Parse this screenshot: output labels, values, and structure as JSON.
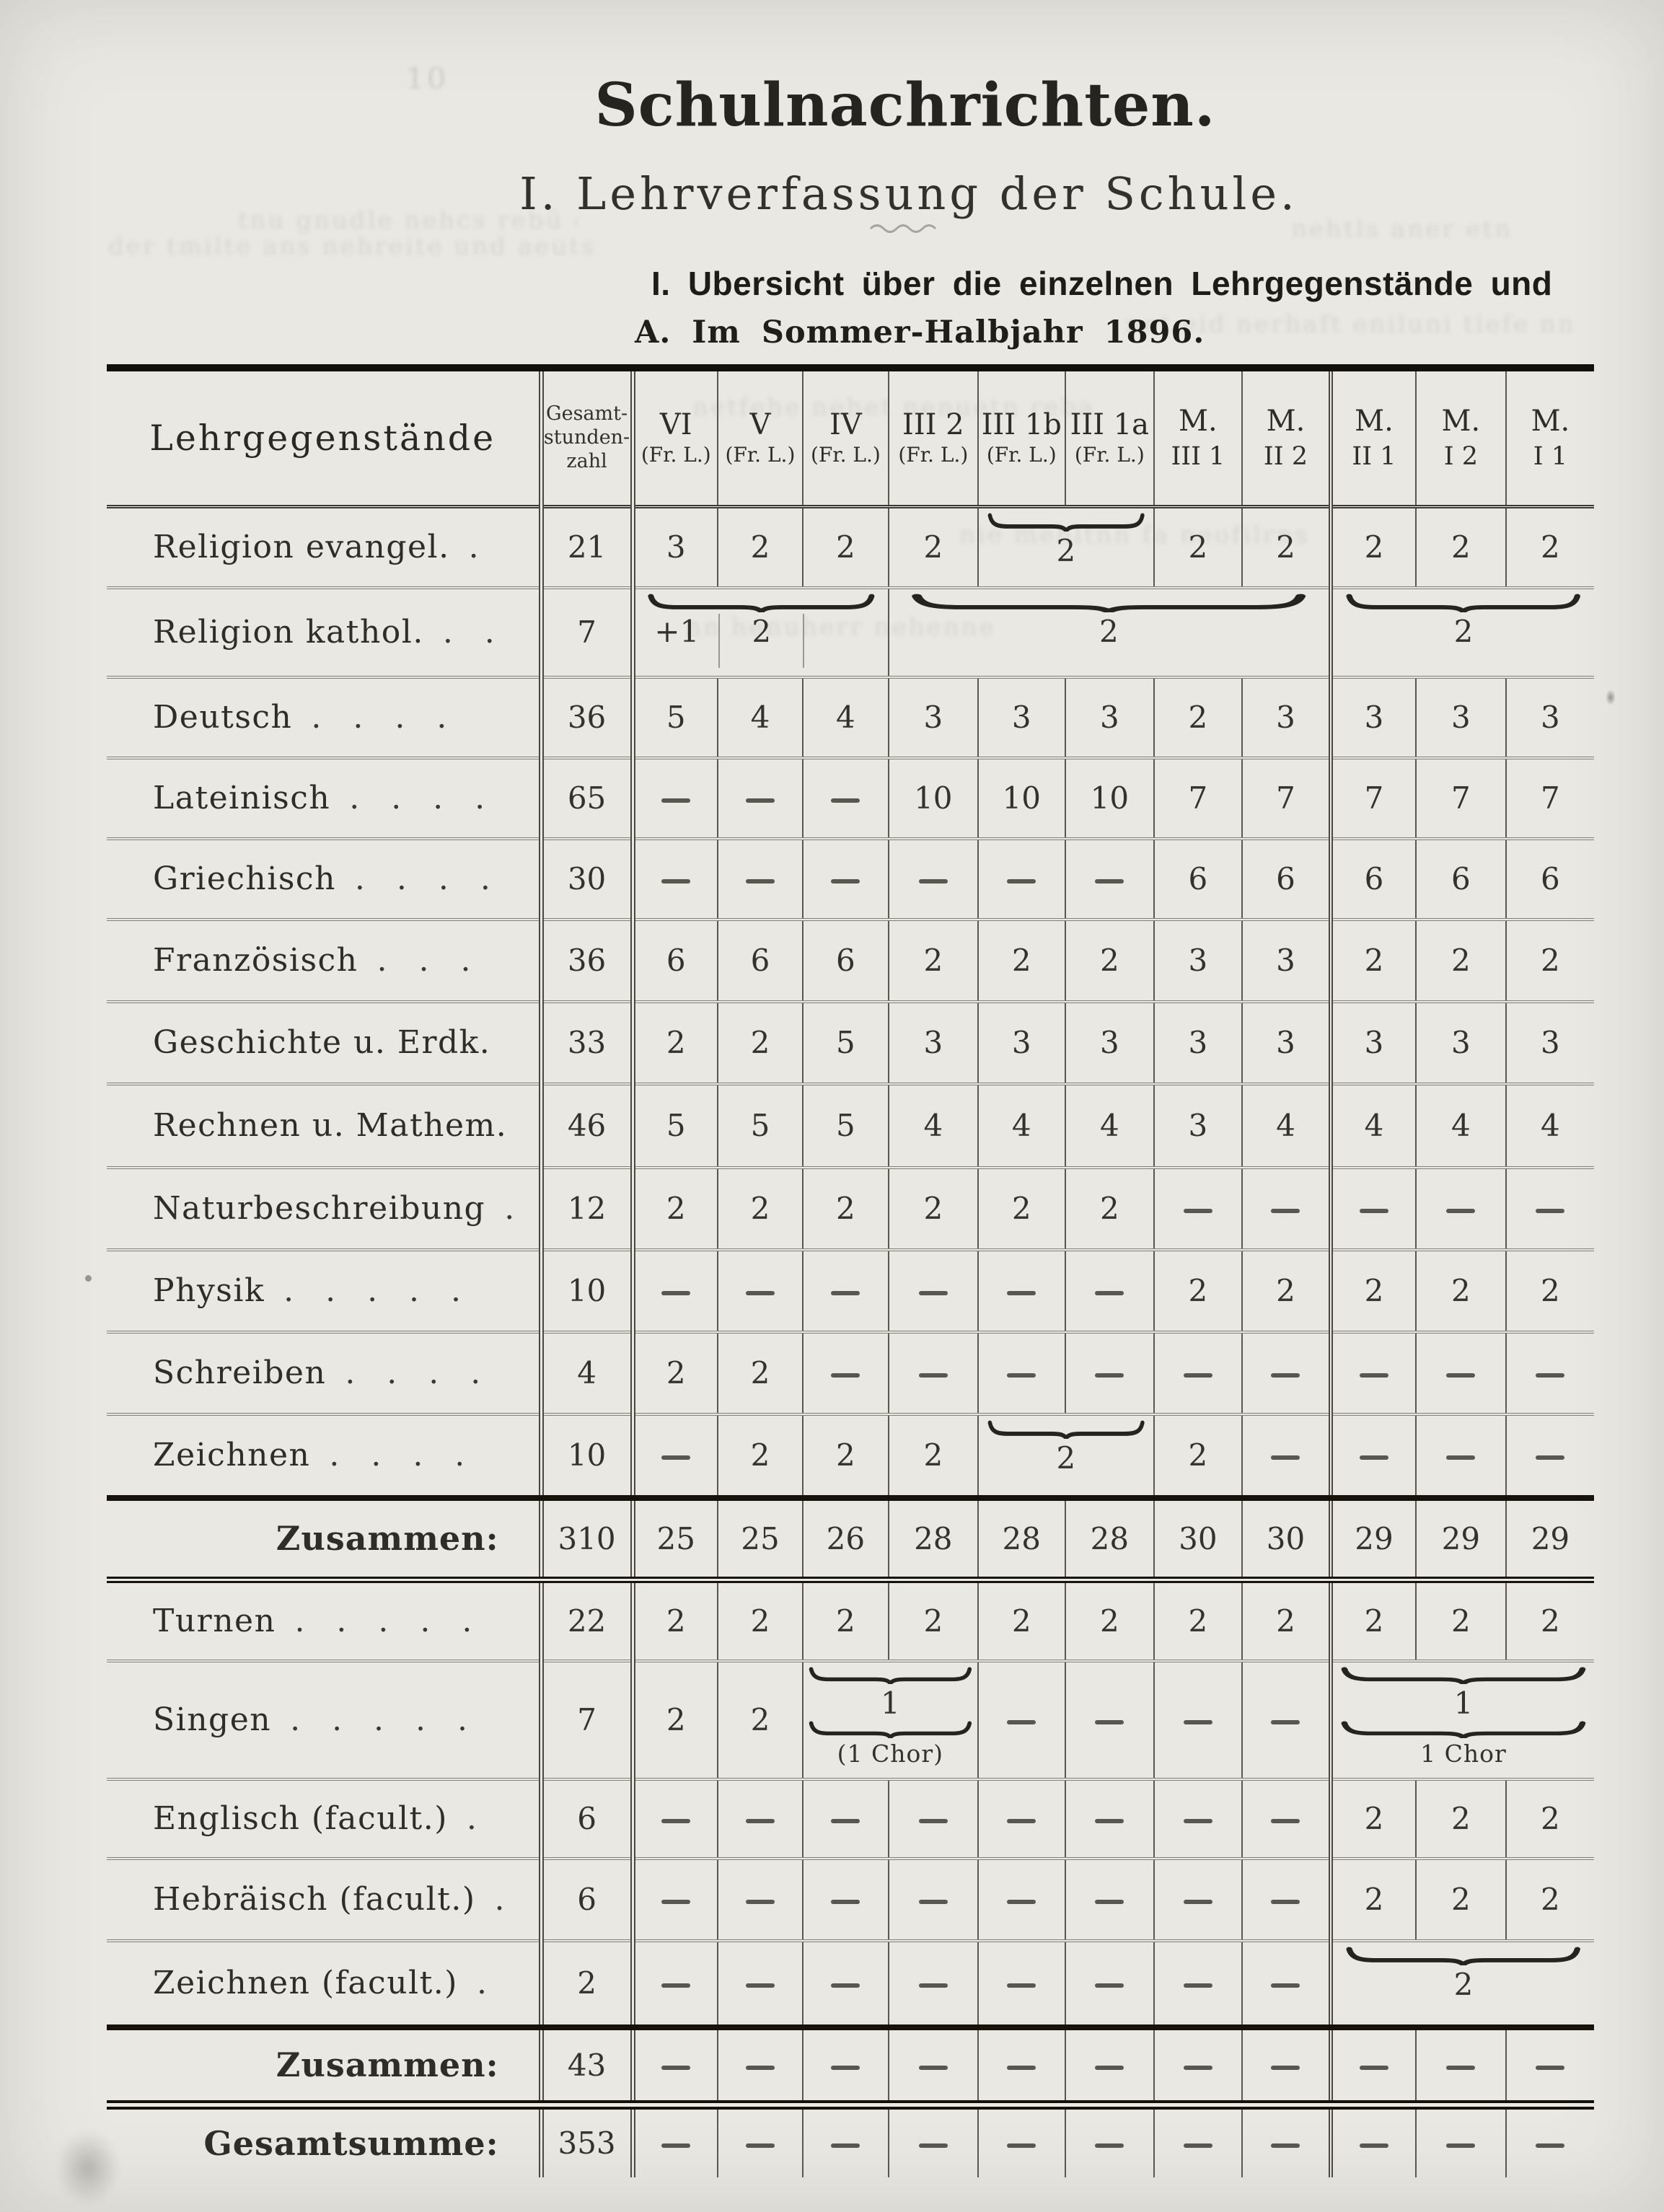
{
  "page": {
    "title": "Schulnachrichten.",
    "subtitle": "I. Lehrverfassung der Schule.",
    "heading_line1": "I. Ubersicht über die einzelnen Lehrgegenstände und",
    "heading_line2": "A. Im Sommer-Halbjahr 1896."
  },
  "table": {
    "subject_header": "Lehrgegenstände",
    "total_header_lines": [
      "Gesamt-",
      "stunden-",
      "zahl"
    ],
    "class_headers": [
      {
        "top": "VI",
        "bottom": "(Fr. L.)"
      },
      {
        "top": "V",
        "bottom": "(Fr. L.)"
      },
      {
        "top": "IV",
        "bottom": "(Fr. L.)"
      },
      {
        "top": "III 2",
        "bottom": "(Fr. L.)"
      },
      {
        "top": "III 1b",
        "bottom": "(Fr. L.)"
      },
      {
        "top": "III 1a",
        "bottom": "(Fr. L.)"
      },
      {
        "top": "M.",
        "bottom": "III 1"
      },
      {
        "top": "M.",
        "bottom": "II 2"
      },
      {
        "top": "M.",
        "bottom": "II 1"
      },
      {
        "top": "M.",
        "bottom": "I 2"
      },
      {
        "top": "M.",
        "bottom": "I 1"
      }
    ],
    "rows": [
      {
        "label": "Religion evangel.",
        "dots": ".",
        "total": "21",
        "cells": [
          "3",
          "2",
          "2",
          "2",
          {
            "span": 2,
            "brace": true,
            "value": "2"
          },
          "2",
          "2",
          "2",
          "2",
          "2"
        ]
      },
      {
        "label": "Religion kathol.",
        "dots": ". .",
        "total": "7",
        "cells": [
          {
            "span": 3,
            "brace": true,
            "parts": [
              "+1",
              "2",
              ""
            ]
          },
          {
            "span": 5,
            "brace": true,
            "value": "2"
          },
          {
            "span": 3,
            "brace": true,
            "value": "2"
          }
        ]
      },
      {
        "label": "Deutsch",
        "dots": ". . . .",
        "total": "36",
        "cells": [
          "5",
          "4",
          "4",
          "3",
          "3",
          "3",
          "2",
          "3",
          "3",
          "3",
          "3"
        ]
      },
      {
        "label": "Lateinisch",
        "dots": ". . . .",
        "total": "65",
        "cells": [
          "-",
          "-",
          "-",
          "10",
          "10",
          "10",
          "7",
          "7",
          "7",
          "7",
          "7"
        ]
      },
      {
        "label": "Griechisch",
        "dots": ". . . .",
        "total": "30",
        "cells": [
          "-",
          "-",
          "-",
          "-",
          "-",
          "-",
          "6",
          "6",
          "6",
          "6",
          "6"
        ]
      },
      {
        "label": "Französisch",
        "dots": ". . .",
        "total": "36",
        "cells": [
          "6",
          "6",
          "6",
          "2",
          "2",
          "2",
          "3",
          "3",
          "2",
          "2",
          "2"
        ]
      },
      {
        "label": "Geschichte u. Erdk.",
        "dots": "",
        "total": "33",
        "cells": [
          "2",
          "2",
          "5",
          "3",
          "3",
          "3",
          "3",
          "3",
          "3",
          "3",
          "3"
        ]
      },
      {
        "label": "Rechnen u. Mathem.",
        "dots": "",
        "total": "46",
        "cells": [
          "5",
          "5",
          "5",
          "4",
          "4",
          "4",
          "3",
          "4",
          "4",
          "4",
          "4"
        ]
      },
      {
        "label": "Naturbeschreibung",
        "dots": ".",
        "total": "12",
        "cells": [
          "2",
          "2",
          "2",
          "2",
          "2",
          "2",
          "-",
          "-",
          "-",
          "-",
          "-"
        ]
      },
      {
        "label": "Physik",
        "dots": ". . . . .",
        "total": "10",
        "cells": [
          "-",
          "-",
          "-",
          "-",
          "-",
          "-",
          "2",
          "2",
          "2",
          "2",
          "2"
        ]
      },
      {
        "label": "Schreiben",
        "dots": ". . . .",
        "total": "4",
        "cells": [
          "2",
          "2",
          "-",
          "-",
          "-",
          "-",
          "-",
          "-",
          "-",
          "-",
          "-"
        ]
      },
      {
        "label": "Zeichnen",
        "dots": ". . . .",
        "total": "10",
        "cells": [
          "-",
          "2",
          "2",
          "2",
          {
            "span": 2,
            "brace": true,
            "value": "2"
          },
          "2",
          "-",
          "-",
          "-",
          "-"
        ]
      },
      {
        "label": "Zusammen:",
        "dots": "",
        "bold": true,
        "total": "310",
        "cells": [
          "25",
          "25",
          "26",
          "28",
          "28",
          "28",
          "30",
          "30",
          "29",
          "29",
          "29"
        ]
      },
      {
        "label": "Turnen",
        "dots": ". . . . .",
        "total": "22",
        "cells": [
          "2",
          "2",
          "2",
          "2",
          "2",
          "2",
          "2",
          "2",
          "2",
          "2",
          "2"
        ]
      },
      {
        "label": "Singen",
        "dots": ". . . . .",
        "total": "7",
        "cells": [
          "2",
          "2",
          {
            "span": 2,
            "sandwich": true,
            "value": "1",
            "caption": "(1 Chor)"
          },
          "-",
          "-",
          "-",
          "-",
          {
            "span": 3,
            "sandwich": true,
            "value": "1",
            "caption": "1 Chor"
          }
        ]
      },
      {
        "label": "Englisch (facult.)",
        "dots": ".",
        "total": "6",
        "cells": [
          "-",
          "-",
          "-",
          "-",
          "-",
          "-",
          "-",
          "-",
          "2",
          "2",
          "2"
        ]
      },
      {
        "label": "Hebräisch (facult.)",
        "dots": ".",
        "total": "6",
        "cells": [
          "-",
          "-",
          "-",
          "-",
          "-",
          "-",
          "-",
          "-",
          "2",
          "2",
          "2"
        ]
      },
      {
        "label": "Zeichnen (facult.)",
        "dots": ".",
        "total": "2",
        "cells": [
          "-",
          "-",
          "-",
          "-",
          "-",
          "-",
          "-",
          "-",
          {
            "span": 3,
            "brace": true,
            "value": "2"
          }
        ]
      },
      {
        "label": "Zusammen:",
        "dots": "",
        "bold": true,
        "total": "43",
        "cells": [
          "-",
          "-",
          "-",
          "-",
          "-",
          "-",
          "-",
          "-",
          "-",
          "-",
          "-"
        ]
      },
      {
        "label": "Gesamtsumme:",
        "dots": "",
        "bold": true,
        "total": "353",
        "cells": [
          "-",
          "-",
          "-",
          "-",
          "-",
          "-",
          "-",
          "-",
          "-",
          "-",
          "-"
        ]
      }
    ]
  },
  "ghost": {
    "lines": [
      "10",
      "tnu gnudle nehcs rebü etla",
      "der tmilte ans nehreite und aeutsfernan bei",
      "nehtls aner etn",
      "net eid nerhaft eniluni tiefe nna",
      "nie mehltnn fa neofilrns",
      "nn henuherr nehenne",
      "netfehe nehet nenuetn reba"
    ]
  }
}
